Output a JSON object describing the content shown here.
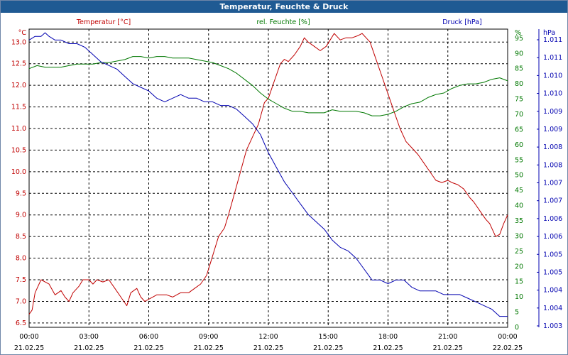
{
  "window": {
    "title": "Temperatur, Feuchte & Druck"
  },
  "colors": {
    "temperature": "#c00000",
    "humidity": "#007800",
    "pressure": "#0000b0",
    "title_bg": "#1f5a93",
    "grid": "#000000"
  },
  "chart_data": {
    "type": "line",
    "title": "Temperatur, Feuchte & Druck",
    "grid": true,
    "x_axis": {
      "range": [
        "21.02.25 00:00",
        "22.02.25 00:00"
      ],
      "tick_times": [
        "00:00",
        "03:00",
        "06:00",
        "09:00",
        "12:00",
        "15:00",
        "18:00",
        "21:00",
        "00:00"
      ],
      "tick_dates": [
        "21.02.25",
        "21.02.25",
        "21.02.25",
        "21.02.25",
        "21.02.25",
        "21.02.25",
        "21.02.25",
        "21.02.25",
        "22.02.25"
      ]
    },
    "axes": {
      "temperature": {
        "label": "Temperatur [°C]",
        "unit": "°C",
        "ylim": [
          6.4,
          13.3
        ],
        "ticks": [
          "13.0",
          "12.5",
          "12.0",
          "11.5",
          "11.0",
          "10.5",
          "10.0",
          "9.5",
          "9.0",
          "8.5",
          "8.0",
          "7.5",
          "7.0",
          "6.5"
        ]
      },
      "humidity": {
        "label": "rel. Feuchte [%]",
        "unit": "%",
        "ylim": [
          0,
          98
        ],
        "ticks": [
          "95",
          "90",
          "85",
          "80",
          "75",
          "70",
          "65",
          "60",
          "55",
          "50",
          "45",
          "40",
          "35",
          "30",
          "25",
          "20",
          "15",
          "10",
          "5",
          "0"
        ]
      },
      "pressure": {
        "label": "Druck [hPa]",
        "unit": "hPa",
        "ylim": [
          1.003,
          1.0112
        ],
        "ticks": [
          "1.011",
          "1.011",
          "1.010",
          "1.010",
          "1.009",
          "1.009",
          "1.008",
          "1.008",
          "1.007",
          "1.007",
          "1.006",
          "1.006",
          "1.005",
          "1.005",
          "1.004",
          "1.004",
          "1.003"
        ]
      }
    },
    "series": [
      {
        "name": "Temperatur [°C]",
        "axis": "temperature",
        "x_hours": [
          0,
          0.15,
          0.3,
          0.6,
          0.8,
          1,
          1.3,
          1.6,
          1.8,
          2,
          2.2,
          2.5,
          2.7,
          3,
          3.2,
          3.4,
          3.7,
          4,
          4.3,
          4.6,
          4.9,
          5.1,
          5.4,
          5.6,
          5.8,
          6,
          6.2,
          6.4,
          6.6,
          6.9,
          7.2,
          7.4,
          7.6,
          7.8,
          8,
          8.3,
          8.6,
          8.9,
          9.1,
          9.3,
          9.5,
          9.8,
          10,
          10.3,
          10.6,
          10.9,
          11.2,
          11.5,
          11.8,
          12,
          12.3,
          12.6,
          12.8,
          13,
          13.3,
          13.6,
          13.8,
          14,
          14.3,
          14.6,
          14.9,
          15.1,
          15.3,
          15.6,
          15.9,
          16.2,
          16.5,
          16.7,
          16.9,
          17.1,
          17.4,
          17.7,
          18,
          18.3,
          18.6,
          18.9,
          19.2,
          19.5,
          19.8,
          20.1,
          20.4,
          20.7,
          21,
          21.2,
          21.5,
          21.8,
          22.1,
          22.3,
          22.6,
          22.9,
          23.1,
          23.4,
          23.6,
          23.8,
          24
        ],
        "values": [
          6.7,
          6.8,
          7.2,
          7.5,
          7.45,
          7.4,
          7.15,
          7.25,
          7.1,
          7.0,
          7.2,
          7.35,
          7.5,
          7.5,
          7.4,
          7.5,
          7.45,
          7.5,
          7.3,
          7.1,
          6.9,
          7.2,
          7.3,
          7.1,
          7.0,
          7.05,
          7.1,
          7.15,
          7.15,
          7.15,
          7.1,
          7.15,
          7.2,
          7.2,
          7.2,
          7.3,
          7.4,
          7.6,
          7.9,
          8.2,
          8.5,
          8.7,
          9.0,
          9.5,
          10.0,
          10.5,
          10.8,
          11.1,
          11.6,
          11.7,
          12.1,
          12.5,
          12.6,
          12.55,
          12.7,
          12.9,
          13.1,
          13.0,
          12.9,
          12.8,
          12.9,
          13.05,
          13.2,
          13.05,
          13.1,
          13.1,
          13.15,
          13.2,
          13.1,
          13.0,
          12.6,
          12.2,
          11.8,
          11.4,
          11.0,
          10.7,
          10.55,
          10.4,
          10.2,
          10.0,
          9.8,
          9.75,
          9.8,
          9.75,
          9.7,
          9.6,
          9.4,
          9.3,
          9.1,
          8.9,
          8.8,
          8.5,
          8.55,
          8.8,
          9.0
        ]
      },
      {
        "name": "rel. Feuchte [%]",
        "axis": "humidity",
        "x_hours": [
          0,
          0.4,
          0.8,
          1.2,
          1.6,
          2,
          2.4,
          2.8,
          3.2,
          3.6,
          4,
          4.4,
          4.8,
          5.2,
          5.6,
          6,
          6.4,
          6.8,
          7.2,
          7.6,
          8,
          8.4,
          8.8,
          9.2,
          9.6,
          10,
          10.4,
          10.8,
          11.2,
          11.6,
          12,
          12.4,
          12.8,
          13.2,
          13.6,
          14,
          14.4,
          14.8,
          15.2,
          15.6,
          16,
          16.4,
          16.8,
          17.2,
          17.6,
          18,
          18.4,
          18.8,
          19.2,
          19.6,
          20,
          20.4,
          20.8,
          21.2,
          21.6,
          22,
          22.4,
          22.8,
          23.2,
          23.6,
          24
        ],
        "values": [
          85,
          86,
          85.5,
          85.5,
          85.5,
          86,
          86.5,
          86.5,
          86.5,
          87,
          87,
          87.5,
          88,
          89,
          89,
          88.5,
          89,
          89,
          88.5,
          88.5,
          88.5,
          88,
          87.5,
          87,
          86,
          85,
          83.5,
          81.5,
          79.5,
          77,
          75,
          73.5,
          72,
          71,
          71,
          70.5,
          70.5,
          70.5,
          71.5,
          71,
          71,
          71,
          70.5,
          69.5,
          69.5,
          70,
          71,
          72.5,
          73.5,
          74,
          75.5,
          76.5,
          77,
          78.5,
          79.5,
          80,
          80,
          80.5,
          81.5,
          82,
          81
        ]
      },
      {
        "name": "Druck [hPa]",
        "axis": "pressure",
        "x_hours": [
          0,
          0.3,
          0.6,
          0.8,
          1,
          1.3,
          1.6,
          2,
          2.4,
          2.8,
          3.2,
          3.6,
          4,
          4.4,
          4.8,
          5.2,
          5.6,
          6,
          6.4,
          6.8,
          7.2,
          7.6,
          8,
          8.4,
          8.8,
          9.2,
          9.6,
          10,
          10.4,
          10.8,
          11.2,
          11.6,
          12,
          12.4,
          12.8,
          13.2,
          13.6,
          14,
          14.4,
          14.8,
          15.2,
          15.6,
          16,
          16.4,
          16.8,
          17.2,
          17.6,
          18,
          18.4,
          18.8,
          19.2,
          19.6,
          20,
          20.4,
          20.8,
          21.2,
          21.6,
          22,
          22.4,
          22.8,
          23.2,
          23.6,
          24
        ],
        "values": [
          1.0109,
          1.011,
          1.011,
          1.0111,
          1.011,
          1.0109,
          1.0109,
          1.0108,
          1.0108,
          1.0107,
          1.0105,
          1.0103,
          1.0102,
          1.0101,
          1.0099,
          1.0097,
          1.0096,
          1.0095,
          1.0093,
          1.0092,
          1.0093,
          1.0094,
          1.0093,
          1.0093,
          1.0092,
          1.0092,
          1.0091,
          1.0091,
          1.009,
          1.0088,
          1.0086,
          1.0083,
          1.0078,
          1.0074,
          1.007,
          1.0067,
          1.0064,
          1.0061,
          1.0059,
          1.0057,
          1.0054,
          1.0052,
          1.0051,
          1.0049,
          1.0046,
          1.0043,
          1.0043,
          1.0042,
          1.0043,
          1.0043,
          1.0041,
          1.004,
          1.004,
          1.004,
          1.0039,
          1.0039,
          1.0039,
          1.0038,
          1.0037,
          1.0036,
          1.0035,
          1.0033,
          1.0033
        ]
      }
    ]
  }
}
